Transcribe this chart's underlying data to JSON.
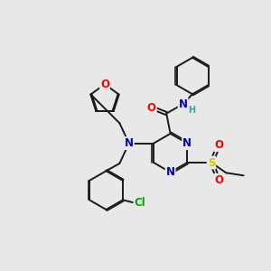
{
  "bg_color": "#e8e8e8",
  "atom_colors": {
    "N": "#0000cc",
    "O": "#ff0000",
    "S": "#cccc00",
    "Cl": "#00aa00",
    "H": "#40a0a0"
  },
  "bond_color": "#1a1a1a",
  "lw": 1.4,
  "fs": 8.5,
  "fs_small": 7.0
}
